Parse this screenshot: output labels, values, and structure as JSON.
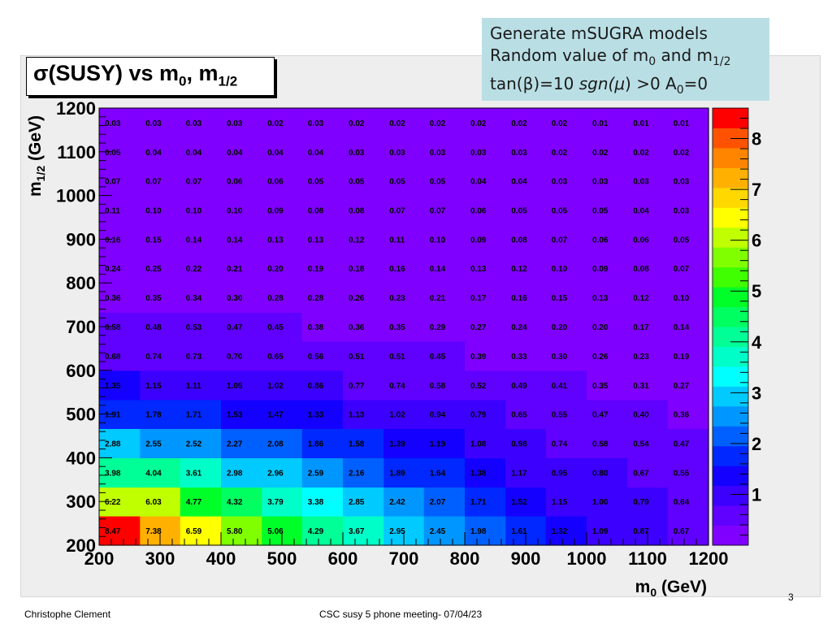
{
  "title": {
    "main": "σ(SUSY) vs m",
    "sub1": "0",
    "mid": ", m",
    "sub2": "1/2"
  },
  "info": {
    "line1": "Generate mSUGRA models",
    "line2_pre": "Random value of m",
    "line2_sub1": "0",
    "line2_mid": " and m",
    "line2_sub2": "1/2",
    "line3_pre": "tan(β)=10  ",
    "line3_sgn": "sgn(",
    "line3_mu": "μ",
    "line3_post": ") >0 A",
    "line3_sub": "0",
    "line3_end": "=0"
  },
  "footer": {
    "left": "Christophe Clement",
    "center": "CSC susy 5 phone meeting-  07/04/23",
    "page": "3"
  },
  "chart_data": {
    "type": "heatmap",
    "xlabel": "m0 (GeV)",
    "ylabel": "m1/2 (GeV)",
    "xlim": [
      200,
      1200
    ],
    "ylim": [
      200,
      1200
    ],
    "x_ticks": [
      200,
      300,
      400,
      500,
      600,
      700,
      800,
      900,
      1000,
      1100,
      1200
    ],
    "y_ticks": [
      200,
      300,
      400,
      500,
      600,
      700,
      800,
      900,
      1000,
      1100,
      1200
    ],
    "x_bin_edges": [
      200,
      267,
      333,
      400,
      467,
      533,
      600,
      667,
      733,
      800,
      867,
      933,
      1000,
      1067,
      1133,
      1200
    ],
    "y_bin_edges": [
      200,
      267,
      333,
      400,
      467,
      533,
      600,
      667,
      733,
      800,
      867,
      933,
      1000,
      1067,
      1133,
      1200
    ],
    "zlim": [
      0,
      8.6
    ],
    "colorbar_ticks": [
      1,
      2,
      3,
      4,
      5,
      6,
      7,
      8
    ],
    "colorbar_colors": [
      "#8000ff",
      "#6000ff",
      "#3c00ff",
      "#1400ff",
      "#0028ff",
      "#0060ff",
      "#0096ff",
      "#00caff",
      "#00ffff",
      "#00ffc8",
      "#00ff96",
      "#00ff60",
      "#00ff28",
      "#40ff00",
      "#80ff00",
      "#c0ff00",
      "#ffff00",
      "#ffd800",
      "#ffb000",
      "#ff8400",
      "#ff5200",
      "#ff0000"
    ],
    "values": [
      [
        8.47,
        7.38,
        6.59,
        5.8,
        5.06,
        4.29,
        3.67,
        2.95,
        2.45,
        1.98,
        1.61,
        1.32,
        1.09,
        0.87,
        0.67
      ],
      [
        6.22,
        6.03,
        4.77,
        4.32,
        3.79,
        3.38,
        2.85,
        2.42,
        2.07,
        1.71,
        1.52,
        1.15,
        1.0,
        0.79,
        0.64
      ],
      [
        3.98,
        4.04,
        3.61,
        2.98,
        2.96,
        2.59,
        2.16,
        1.89,
        1.64,
        1.38,
        1.17,
        0.95,
        0.8,
        0.67,
        0.55
      ],
      [
        2.88,
        2.55,
        2.52,
        2.27,
        2.08,
        1.86,
        1.58,
        1.39,
        1.19,
        1.08,
        0.98,
        0.74,
        0.58,
        0.54,
        0.47
      ],
      [
        1.91,
        1.78,
        1.71,
        1.53,
        1.47,
        1.33,
        1.13,
        1.02,
        0.94,
        0.79,
        0.65,
        0.55,
        0.47,
        0.4,
        0.36
      ],
      [
        1.35,
        1.15,
        1.11,
        1.05,
        1.02,
        0.86,
        0.77,
        0.74,
        0.58,
        0.52,
        0.49,
        0.41,
        0.35,
        0.31,
        0.27
      ],
      [
        0.68,
        0.74,
        0.73,
        0.7,
        0.65,
        0.56,
        0.51,
        0.51,
        0.45,
        0.39,
        0.33,
        0.3,
        0.26,
        0.23,
        0.19
      ],
      [
        0.58,
        0.48,
        0.53,
        0.47,
        0.45,
        0.38,
        0.36,
        0.35,
        0.29,
        0.27,
        0.24,
        0.2,
        0.2,
        0.17,
        0.14
      ],
      [
        0.36,
        0.35,
        0.34,
        0.3,
        0.28,
        0.28,
        0.26,
        0.23,
        0.21,
        0.17,
        0.16,
        0.15,
        0.13,
        0.12,
        0.1
      ],
      [
        0.24,
        0.25,
        0.22,
        0.21,
        0.2,
        0.19,
        0.18,
        0.16,
        0.14,
        0.13,
        0.12,
        0.1,
        0.09,
        0.08,
        0.07
      ],
      [
        0.16,
        0.15,
        0.14,
        0.14,
        0.13,
        0.13,
        0.12,
        0.11,
        0.1,
        0.09,
        0.08,
        0.07,
        0.06,
        0.06,
        0.05
      ],
      [
        0.11,
        0.1,
        0.1,
        0.1,
        0.09,
        0.08,
        0.08,
        0.07,
        0.07,
        0.06,
        0.05,
        0.05,
        0.05,
        0.04,
        0.03
      ],
      [
        0.07,
        0.07,
        0.07,
        0.06,
        0.06,
        0.05,
        0.05,
        0.05,
        0.05,
        0.04,
        0.04,
        0.03,
        0.03,
        0.03,
        0.03
      ],
      [
        0.05,
        0.04,
        0.04,
        0.04,
        0.04,
        0.04,
        0.03,
        0.03,
        0.03,
        0.03,
        0.03,
        0.02,
        0.02,
        0.02,
        0.02
      ],
      [
        0.03,
        0.03,
        0.03,
        0.03,
        0.02,
        0.03,
        0.02,
        0.02,
        0.02,
        0.02,
        0.02,
        0.02,
        0.01,
        0.01,
        0.01
      ]
    ]
  }
}
